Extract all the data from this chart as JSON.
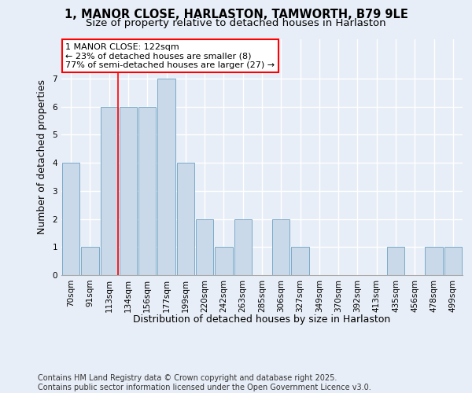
{
  "title_line1": "1, MANOR CLOSE, HARLASTON, TAMWORTH, B79 9LE",
  "title_line2": "Size of property relative to detached houses in Harlaston",
  "xlabel": "Distribution of detached houses by size in Harlaston",
  "ylabel": "Number of detached properties",
  "categories": [
    "70sqm",
    "91sqm",
    "113sqm",
    "134sqm",
    "156sqm",
    "177sqm",
    "199sqm",
    "220sqm",
    "242sqm",
    "263sqm",
    "285sqm",
    "306sqm",
    "327sqm",
    "349sqm",
    "370sqm",
    "392sqm",
    "413sqm",
    "435sqm",
    "456sqm",
    "478sqm",
    "499sqm"
  ],
  "values": [
    4,
    1,
    6,
    6,
    6,
    7,
    4,
    2,
    1,
    2,
    0,
    2,
    1,
    0,
    0,
    0,
    0,
    1,
    0,
    1,
    1
  ],
  "bar_color": "#c9d9ea",
  "bar_edge_color": "#7aaac8",
  "redline_index": 2,
  "annotation_text_line1": "1 MANOR CLOSE: 122sqm",
  "annotation_text_line2": "← 23% of detached houses are smaller (8)",
  "annotation_text_line3": "77% of semi-detached houses are larger (27) →",
  "ylim": [
    0,
    8.4
  ],
  "yticks": [
    0,
    1,
    2,
    3,
    4,
    5,
    6,
    7
  ],
  "background_color": "#e8eef7",
  "plot_bg_color": "#e8eef7",
  "grid_color": "#ffffff",
  "footnote": "Contains HM Land Registry data © Crown copyright and database right 2025.\nContains public sector information licensed under the Open Government Licence v3.0.",
  "title_fontsize": 10.5,
  "subtitle_fontsize": 9.5,
  "axis_label_fontsize": 9,
  "tick_fontsize": 7.5,
  "annotation_fontsize": 8,
  "footnote_fontsize": 7
}
